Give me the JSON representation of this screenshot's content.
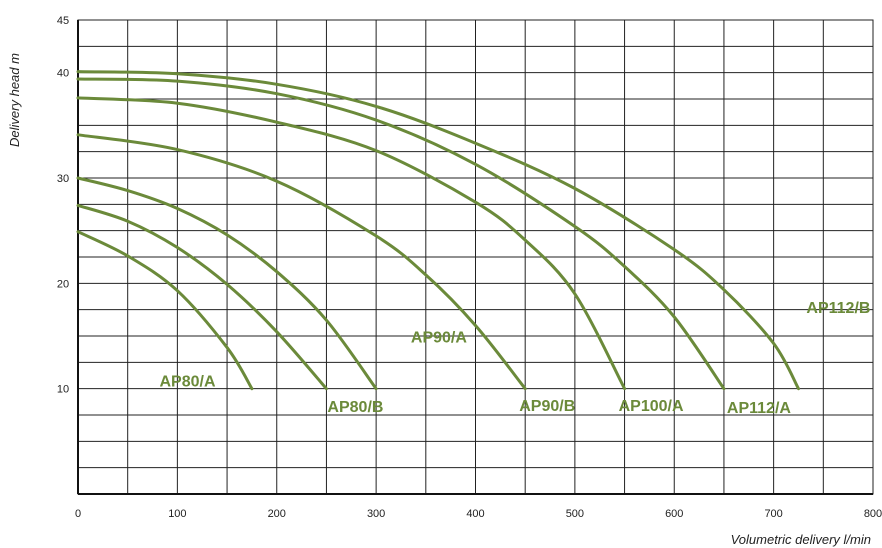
{
  "chart_data": {
    "type": "line",
    "title": "",
    "xlabel": "Volumetric delivery l/min",
    "ylabel": "Delivery head m",
    "xlim": [
      0,
      800
    ],
    "ylim": [
      0,
      45
    ],
    "x_ticks": [
      "0",
      "100",
      "200",
      "300",
      "400",
      "500",
      "600",
      "700",
      "800"
    ],
    "y_ticks": [
      "10",
      "20",
      "30",
      "40",
      "45"
    ],
    "grid": true,
    "line_color": "#6b8a3a",
    "series": [
      {
        "name": "AP80/A",
        "x": [
          0,
          50,
          100,
          150,
          175
        ],
        "y": [
          24.9,
          22.6,
          19.3,
          13.9,
          10
        ]
      },
      {
        "name": "AP80/B",
        "x": [
          0,
          50,
          100,
          150,
          200,
          250
        ],
        "y": [
          27.4,
          25.9,
          23.4,
          19.9,
          15.4,
          10
        ]
      },
      {
        "name": "AP90/A",
        "x": [
          0,
          50,
          100,
          150,
          200,
          250,
          300
        ],
        "y": [
          30,
          28.8,
          27.1,
          24.6,
          21.1,
          16.5,
          10
        ]
      },
      {
        "name": "AP90/B",
        "x": [
          0,
          100,
          200,
          300,
          350,
          400,
          450
        ],
        "y": [
          34.1,
          32.7,
          29.7,
          24.5,
          20.8,
          16,
          10
        ]
      },
      {
        "name": "AP100/A",
        "x": [
          0,
          100,
          200,
          300,
          400,
          450,
          500,
          550
        ],
        "y": [
          37.6,
          37.1,
          35.3,
          32.6,
          27.7,
          24.1,
          19,
          10
        ]
      },
      {
        "name": "AP112/A",
        "x": [
          0,
          100,
          200,
          300,
          400,
          500,
          550,
          600,
          650
        ],
        "y": [
          39.4,
          39.2,
          38,
          35.5,
          31.3,
          25.4,
          21.6,
          16.8,
          10
        ]
      },
      {
        "name": "AP112/B",
        "x": [
          0,
          100,
          200,
          300,
          400,
          500,
          600,
          650,
          700,
          725
        ],
        "y": [
          40.1,
          39.9,
          38.9,
          36.8,
          33.3,
          29,
          23.2,
          19.4,
          14.3,
          10
        ]
      }
    ],
    "labels": [
      {
        "text": "AP80/A",
        "x": 82,
        "y": 10.2
      },
      {
        "text": "AP80/B",
        "x": 251,
        "y": 7.8
      },
      {
        "text": "AP90/A",
        "x": 335,
        "y": 14.4
      },
      {
        "text": "AP90/B",
        "x": 444,
        "y": 7.9
      },
      {
        "text": "AP100/A",
        "x": 544,
        "y": 7.9
      },
      {
        "text": "AP112/A",
        "x": 653,
        "y": 7.7
      },
      {
        "text": "AP112/B",
        "x": 733,
        "y": 17.2
      }
    ]
  }
}
